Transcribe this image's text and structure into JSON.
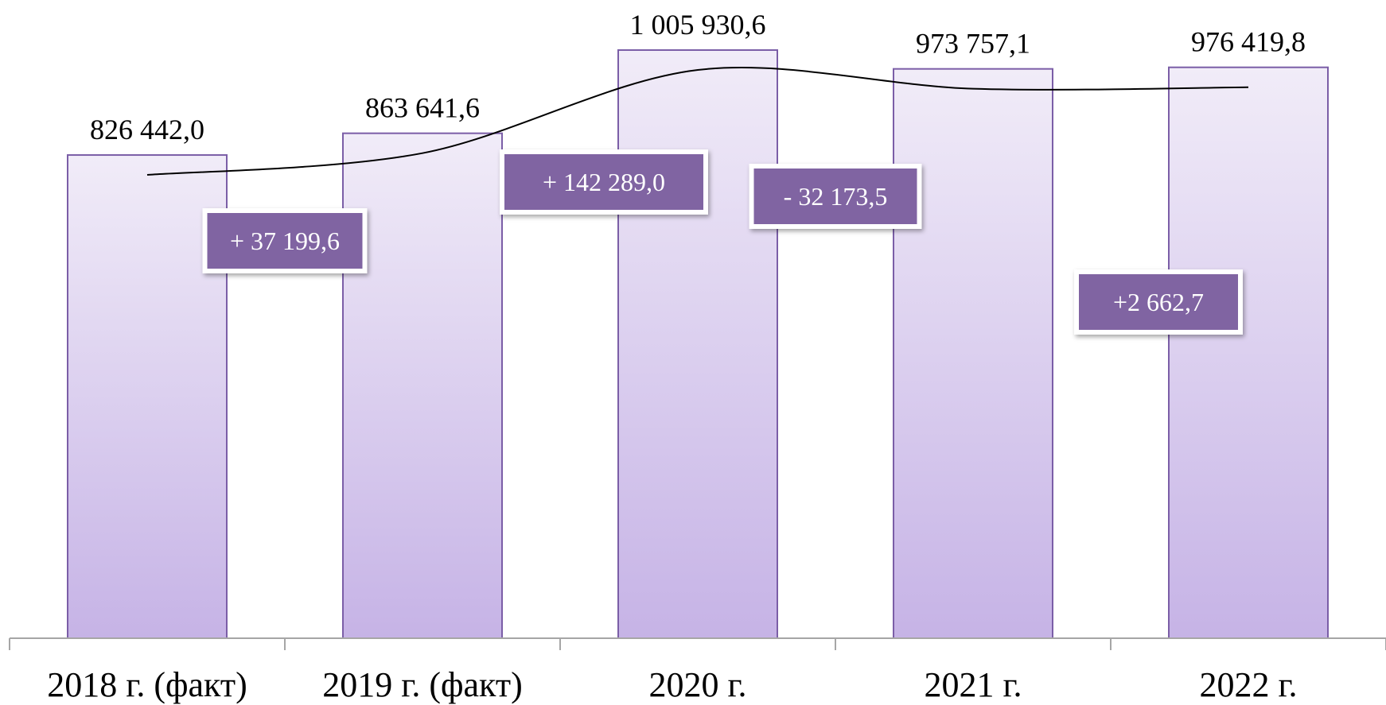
{
  "chart_data": {
    "type": "bar",
    "categories": [
      "2018 г. (факт)",
      "2019 г. (факт)",
      "2020 г.",
      "2021 г.",
      "2022 г."
    ],
    "values": [
      826442.0,
      863641.6,
      1005930.6,
      973757.1,
      976419.8
    ],
    "value_labels": [
      "826 442,0",
      "863 641,6",
      "1 005 930,6",
      "973 757,1",
      "976 419,8"
    ],
    "changes": [
      "+ 37 199,6",
      "+ 142 289,0",
      "- 32 173,5",
      "+2 662,7"
    ],
    "ylim": [
      0,
      1005930.6
    ],
    "grid": false,
    "legend": "none",
    "trend_line": true,
    "colors": {
      "bar_top": "#f1ecf8",
      "bar_bottom": "#c6b3e6",
      "bar_border": "#7b5ea7",
      "change_box": "#8064a2",
      "axis": "#a6a6a6"
    }
  }
}
